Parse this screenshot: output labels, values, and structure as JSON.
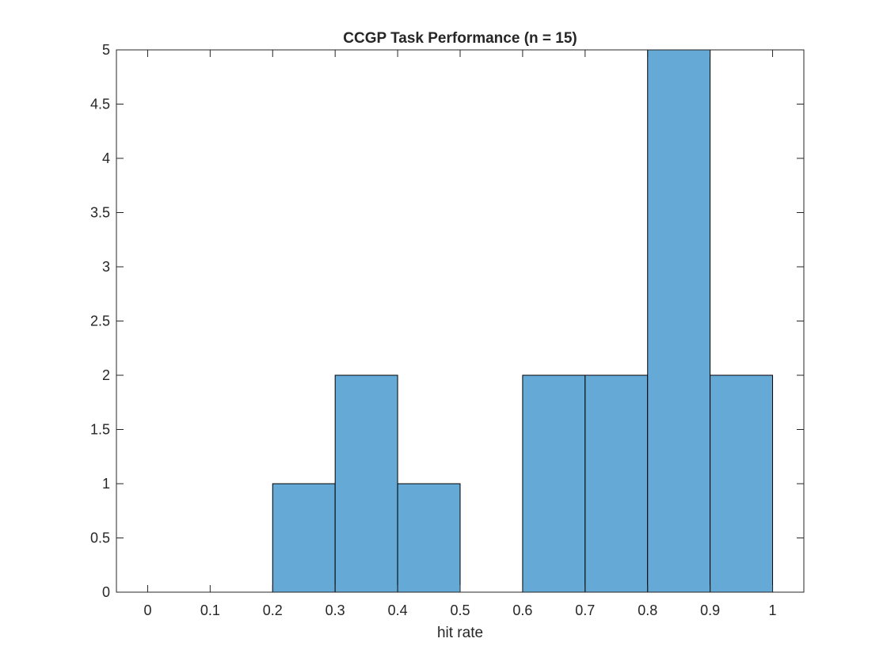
{
  "chart_data": {
    "type": "bar",
    "title": "CCGP Task Performance (n = 15)",
    "xlabel": "hit rate",
    "ylabel": "",
    "bin_edges": [
      0.2,
      0.3,
      0.4,
      0.5,
      0.6,
      0.7,
      0.8,
      0.9,
      1.0
    ],
    "values": [
      1,
      2,
      1,
      0,
      2,
      2,
      5,
      2
    ],
    "xlim": [
      -0.05,
      1.05
    ],
    "ylim": [
      0,
      5
    ],
    "xticks": [
      "0",
      "0.1",
      "0.2",
      "0.3",
      "0.4",
      "0.5",
      "0.6",
      "0.7",
      "0.8",
      "0.9",
      "1"
    ],
    "yticks": [
      "0",
      "0.5",
      "1",
      "1.5",
      "2",
      "2.5",
      "3",
      "3.5",
      "4",
      "4.5",
      "5"
    ],
    "grid": false,
    "colors": {
      "bar_fill": "#65a9d7",
      "bar_edge": "#000000",
      "axis": "#262626"
    }
  }
}
